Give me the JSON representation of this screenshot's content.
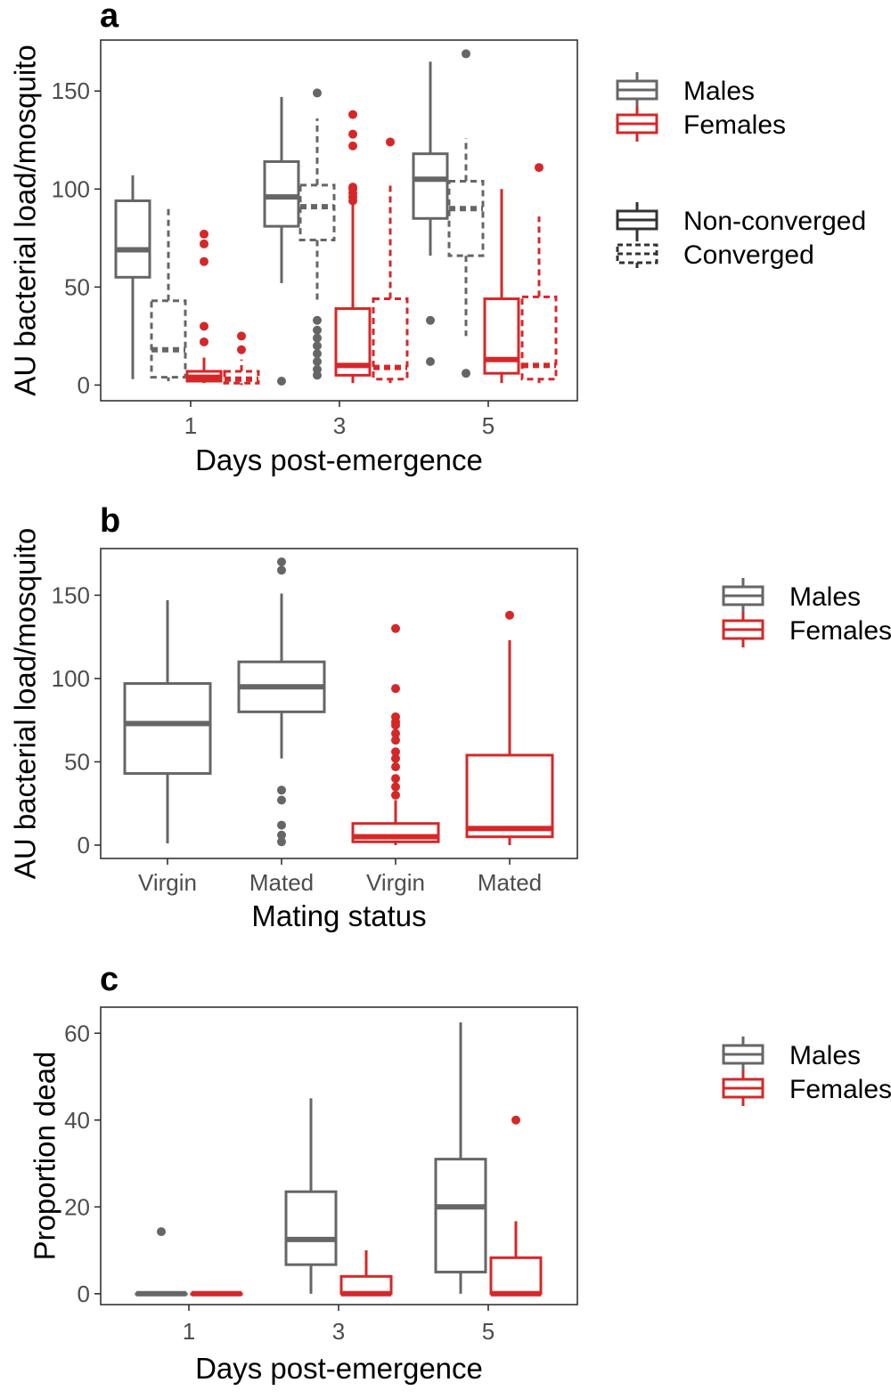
{
  "colors": {
    "males": "#666666",
    "females": "#d62728",
    "outline": "#333333"
  },
  "chart_data": [
    {
      "panel": "a",
      "type": "box",
      "xlabel": "Days post-emergence",
      "ylabel": "AU bacterial load/mosquito",
      "categories": [
        "1",
        "3",
        "5"
      ],
      "yticks": [
        0,
        50,
        100,
        150
      ],
      "ylim": [
        -8,
        176
      ],
      "legend": {
        "groups": [
          {
            "items": [
              {
                "label": "Males",
                "color": "males",
                "dash": false
              },
              {
                "label": "Females",
                "color": "females",
                "dash": false
              }
            ]
          },
          {
            "items": [
              {
                "label": "Non-converged",
                "color": "outline",
                "dash": false
              },
              {
                "label": "Converged",
                "color": "outline",
                "dash": true
              }
            ]
          }
        ]
      },
      "boxes": [
        {
          "group": "1",
          "sex": "males",
          "converged": false,
          "whisker_low": 3,
          "q1": 55,
          "median": 69,
          "q3": 94,
          "whisker_high": 107,
          "outliers": []
        },
        {
          "group": "1",
          "sex": "males",
          "converged": true,
          "whisker_low": 2,
          "q1": 4,
          "median": 18,
          "q3": 43,
          "whisker_high": 91,
          "outliers": []
        },
        {
          "group": "1",
          "sex": "females",
          "converged": false,
          "whisker_low": 1,
          "q1": 2,
          "median": 4,
          "q3": 7,
          "whisker_high": 14,
          "outliers": [
            22,
            30,
            63,
            72,
            77
          ]
        },
        {
          "group": "1",
          "sex": "females",
          "converged": true,
          "whisker_low": 0,
          "q1": 1,
          "median": 3,
          "q3": 7,
          "whisker_high": 13,
          "outliers": [
            18,
            25
          ]
        },
        {
          "group": "3",
          "sex": "males",
          "converged": false,
          "whisker_low": 52,
          "q1": 81,
          "median": 96,
          "q3": 114,
          "whisker_high": 147,
          "outliers": [
            2
          ]
        },
        {
          "group": "3",
          "sex": "males",
          "converged": true,
          "whisker_low": 42,
          "q1": 74,
          "median": 91,
          "q3": 102,
          "whisker_high": 136,
          "outliers": [
            5,
            8,
            12,
            16,
            20,
            24,
            28,
            33,
            149
          ]
        },
        {
          "group": "3",
          "sex": "females",
          "converged": false,
          "whisker_low": 1,
          "q1": 5,
          "median": 10,
          "q3": 39,
          "whisker_high": 92,
          "outliers": [
            94,
            96,
            98,
            100,
            101,
            122,
            128,
            138
          ]
        },
        {
          "group": "3",
          "sex": "females",
          "converged": true,
          "whisker_low": 1,
          "q1": 3,
          "median": 9,
          "q3": 44,
          "whisker_high": 104,
          "outliers": [
            124
          ]
        },
        {
          "group": "5",
          "sex": "males",
          "converged": false,
          "whisker_low": 66,
          "q1": 85,
          "median": 105,
          "q3": 118,
          "whisker_high": 165,
          "outliers": [
            12,
            33
          ]
        },
        {
          "group": "5",
          "sex": "males",
          "converged": true,
          "whisker_low": 25,
          "q1": 66,
          "median": 90,
          "q3": 104,
          "whisker_high": 126,
          "outliers": [
            6,
            169
          ]
        },
        {
          "group": "5",
          "sex": "females",
          "converged": false,
          "whisker_low": 1,
          "q1": 6,
          "median": 13,
          "q3": 44,
          "whisker_high": 100,
          "outliers": []
        },
        {
          "group": "5",
          "sex": "females",
          "converged": true,
          "whisker_low": 1,
          "q1": 3,
          "median": 10,
          "q3": 45,
          "whisker_high": 86,
          "outliers": [
            111
          ]
        }
      ]
    },
    {
      "panel": "b",
      "type": "box",
      "xlabel": "Mating status",
      "ylabel": "AU bacterial load/mosquito",
      "categories": [
        "Virgin",
        "Mated",
        "Virgin",
        "Mated"
      ],
      "yticks": [
        0,
        50,
        100,
        150
      ],
      "ylim": [
        -8,
        178
      ],
      "legend": {
        "groups": [
          {
            "items": [
              {
                "label": "Males",
                "color": "males",
                "dash": false
              },
              {
                "label": "Females",
                "color": "females",
                "dash": false
              }
            ]
          }
        ]
      },
      "boxes": [
        {
          "group": "Virgin",
          "sex": "males",
          "whisker_low": 1,
          "q1": 43,
          "median": 73,
          "q3": 97,
          "whisker_high": 147,
          "outliers": []
        },
        {
          "group": "Mated",
          "sex": "males",
          "whisker_low": 52,
          "q1": 80,
          "median": 95,
          "q3": 110,
          "whisker_high": 151,
          "outliers": [
            2,
            6,
            12,
            27,
            33,
            165,
            170
          ]
        },
        {
          "group": "Virgin",
          "sex": "females",
          "whisker_low": 0,
          "q1": 2,
          "median": 5,
          "q3": 13,
          "whisker_high": 27,
          "outliers": [
            30,
            35,
            40,
            47,
            52,
            56,
            63,
            67,
            72,
            74,
            77,
            94,
            130
          ]
        },
        {
          "group": "Mated",
          "sex": "females",
          "whisker_low": 0,
          "q1": 5,
          "median": 10,
          "q3": 54,
          "whisker_high": 123,
          "outliers": [
            138
          ]
        }
      ]
    },
    {
      "panel": "c",
      "type": "box",
      "xlabel": "Days post-emergence",
      "ylabel": "Proportion dead",
      "categories": [
        "1",
        "3",
        "5"
      ],
      "yticks": [
        0,
        20,
        40,
        60
      ],
      "ylim": [
        -2.5,
        66
      ],
      "legend": {
        "groups": [
          {
            "items": [
              {
                "label": "Males",
                "color": "males",
                "dash": false
              },
              {
                "label": "Females",
                "color": "females",
                "dash": false
              }
            ]
          }
        ]
      },
      "boxes": [
        {
          "group": "1",
          "sex": "males",
          "whisker_low": 0,
          "q1": 0,
          "median": 0,
          "q3": 0,
          "whisker_high": 0,
          "outliers": [
            14.3
          ]
        },
        {
          "group": "1",
          "sex": "females",
          "whisker_low": 0,
          "q1": 0,
          "median": 0,
          "q3": 0,
          "whisker_high": 0,
          "outliers": []
        },
        {
          "group": "3",
          "sex": "males",
          "whisker_low": 0,
          "q1": 6.7,
          "median": 12.5,
          "q3": 23.5,
          "whisker_high": 45,
          "outliers": []
        },
        {
          "group": "3",
          "sex": "females",
          "whisker_low": 0,
          "q1": 0,
          "median": 0,
          "q3": 4,
          "whisker_high": 10,
          "outliers": []
        },
        {
          "group": "5",
          "sex": "males",
          "whisker_low": 0,
          "q1": 5,
          "median": 20,
          "q3": 31,
          "whisker_high": 62.5,
          "outliers": []
        },
        {
          "group": "5",
          "sex": "females",
          "whisker_low": 0,
          "q1": 0,
          "median": 0,
          "q3": 8.3,
          "whisker_high": 16.7,
          "outliers": [
            40
          ]
        }
      ]
    }
  ]
}
